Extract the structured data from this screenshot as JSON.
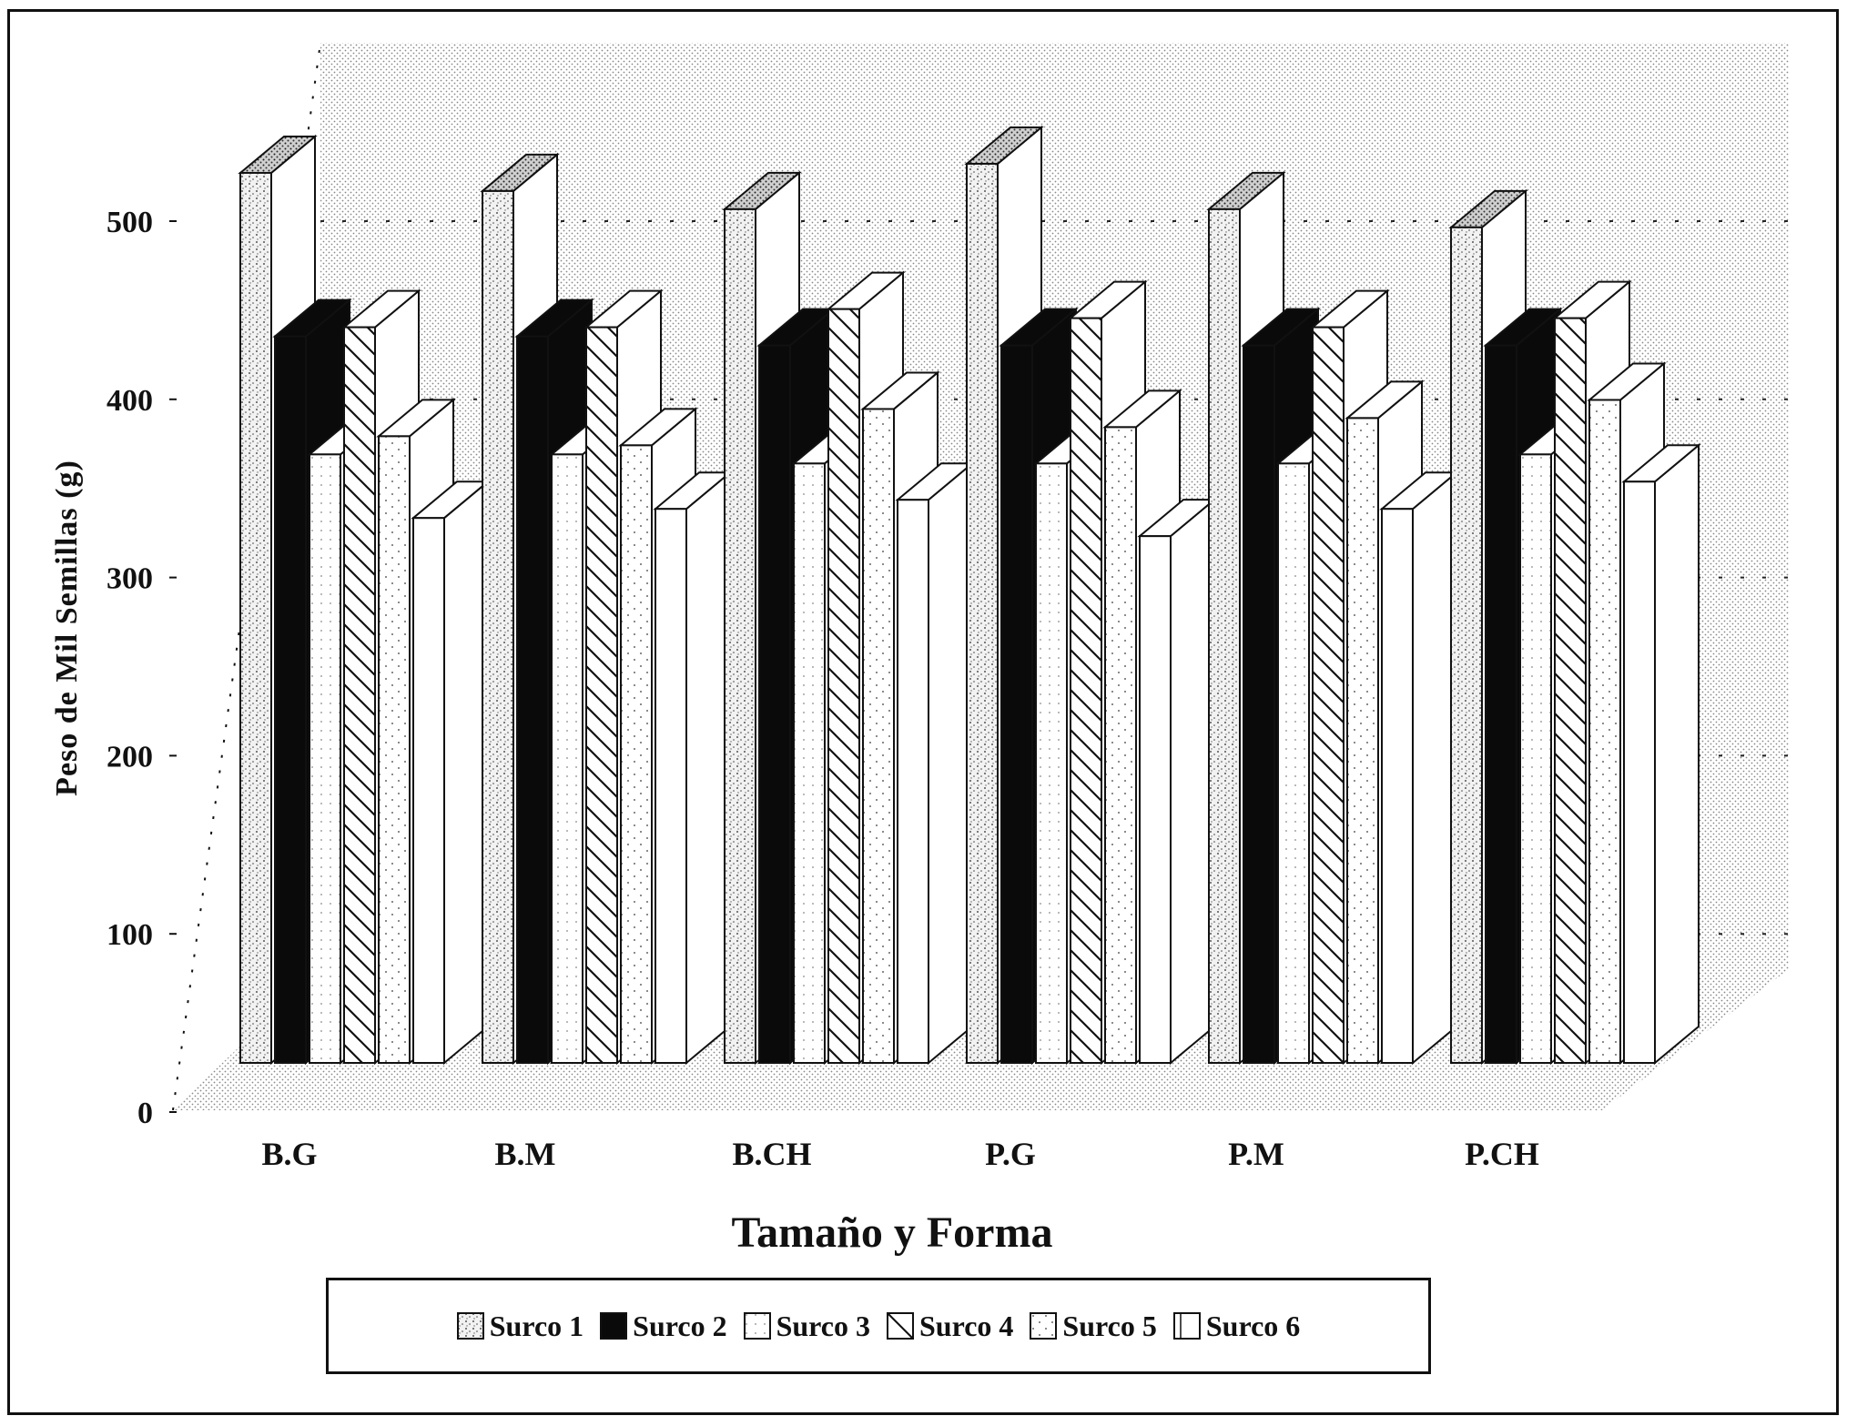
{
  "chart_data": {
    "type": "bar",
    "title": "",
    "xlabel": "Tamaño y Forma",
    "ylabel": "Peso de Mil Semillas (g)",
    "ylim": [
      0,
      500
    ],
    "yticks": [
      "0",
      "100",
      "200",
      "300",
      "400",
      "500"
    ],
    "categories": [
      "B.G",
      "B.M",
      "B.CH",
      "P.G",
      "P.M",
      "P.CH"
    ],
    "series": [
      {
        "name": "Surco 1",
        "values": [
          490,
          480,
          470,
          495,
          470,
          460
        ],
        "pattern": "speckle"
      },
      {
        "name": "Surco 2",
        "values": [
          400,
          400,
          395,
          395,
          395,
          395
        ],
        "pattern": "solid-black"
      },
      {
        "name": "Surco 3",
        "values": [
          335,
          335,
          330,
          330,
          330,
          335
        ],
        "pattern": "light-dots"
      },
      {
        "name": "Surco 4",
        "values": [
          405,
          405,
          415,
          410,
          405,
          410
        ],
        "pattern": "diagonal-hatch"
      },
      {
        "name": "Surco 5",
        "values": [
          345,
          340,
          360,
          350,
          355,
          365
        ],
        "pattern": "sparse-dots"
      },
      {
        "name": "Surco 6",
        "values": [
          300,
          305,
          310,
          290,
          305,
          320
        ],
        "pattern": "white"
      }
    ],
    "legend_position": "bottom",
    "grid": true,
    "view": "3d"
  }
}
